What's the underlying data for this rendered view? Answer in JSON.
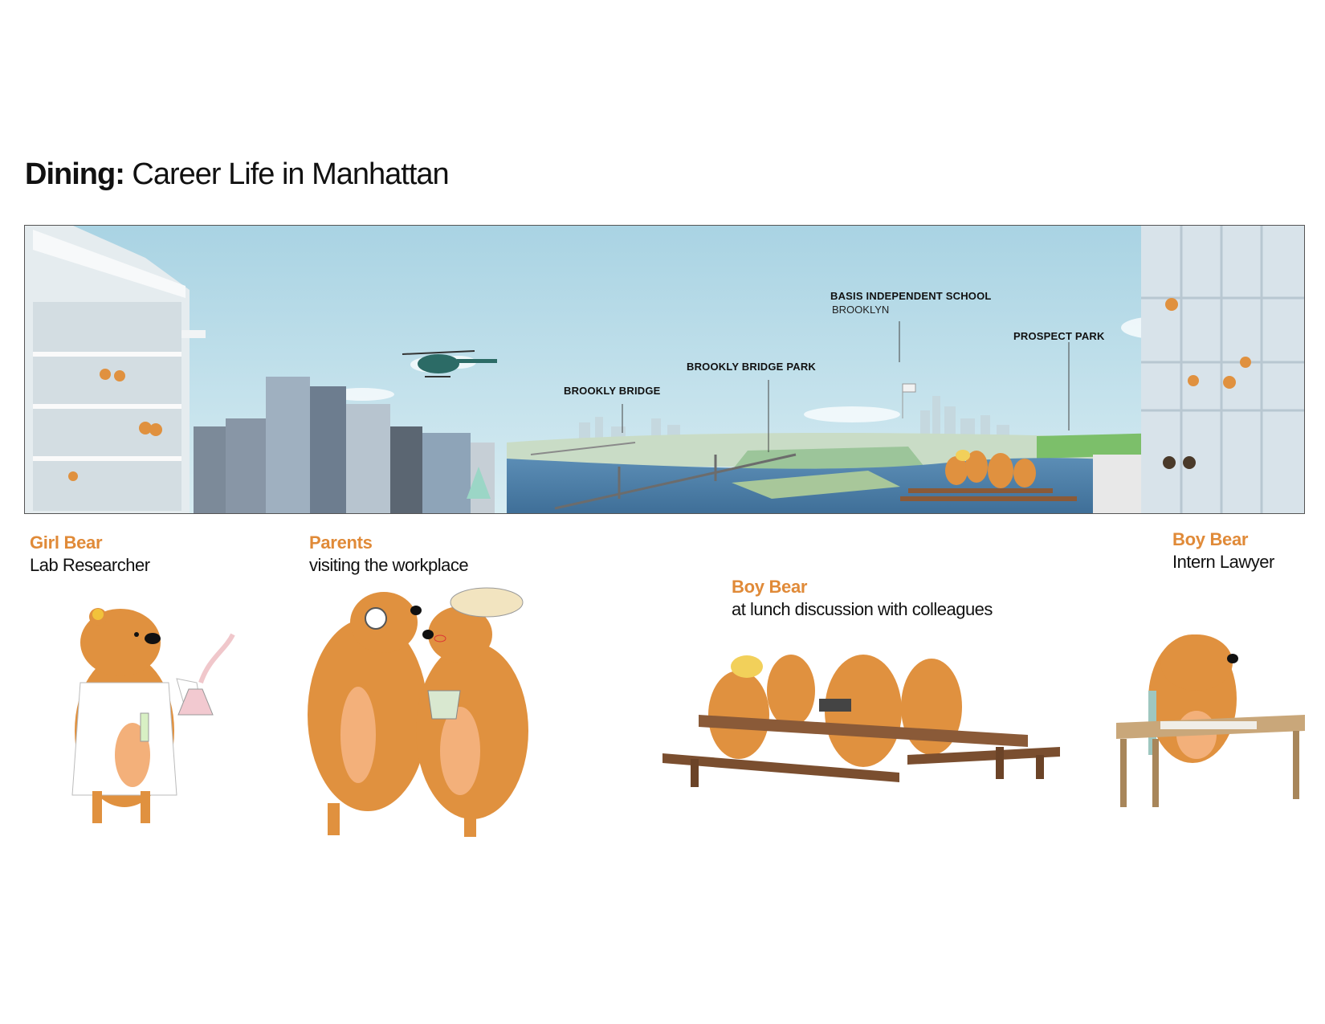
{
  "title": {
    "bold": "Dining:",
    "rest": " Career Life in Manhattan"
  },
  "panorama": {
    "labels": {
      "brooklyn_bridge": "BROOKLY BRIDGE",
      "brooklyn_bridge_park": "BROOKLY BRIDGE PARK",
      "school": "BASIS INDEPENDENT SCHOOL",
      "school_sub": "BROOKLYN",
      "prospect_park": "PROSPECT PARK"
    }
  },
  "characters": [
    {
      "name": "Girl Bear",
      "role": "Lab Researcher"
    },
    {
      "name": "Parents",
      "role": "visiting the workplace"
    },
    {
      "name": "Boy Bear",
      "role": "at lunch discussion with colleagues"
    },
    {
      "name": "Boy Bear",
      "role": "Intern Lawyer"
    }
  ],
  "colors": {
    "bear": "#e0913f",
    "bear_belly": "#f3b07a",
    "accent_text": "#e08a38",
    "sky": "#b8dde8",
    "water": "#4b7fa6",
    "wood": "#8a5a38"
  }
}
